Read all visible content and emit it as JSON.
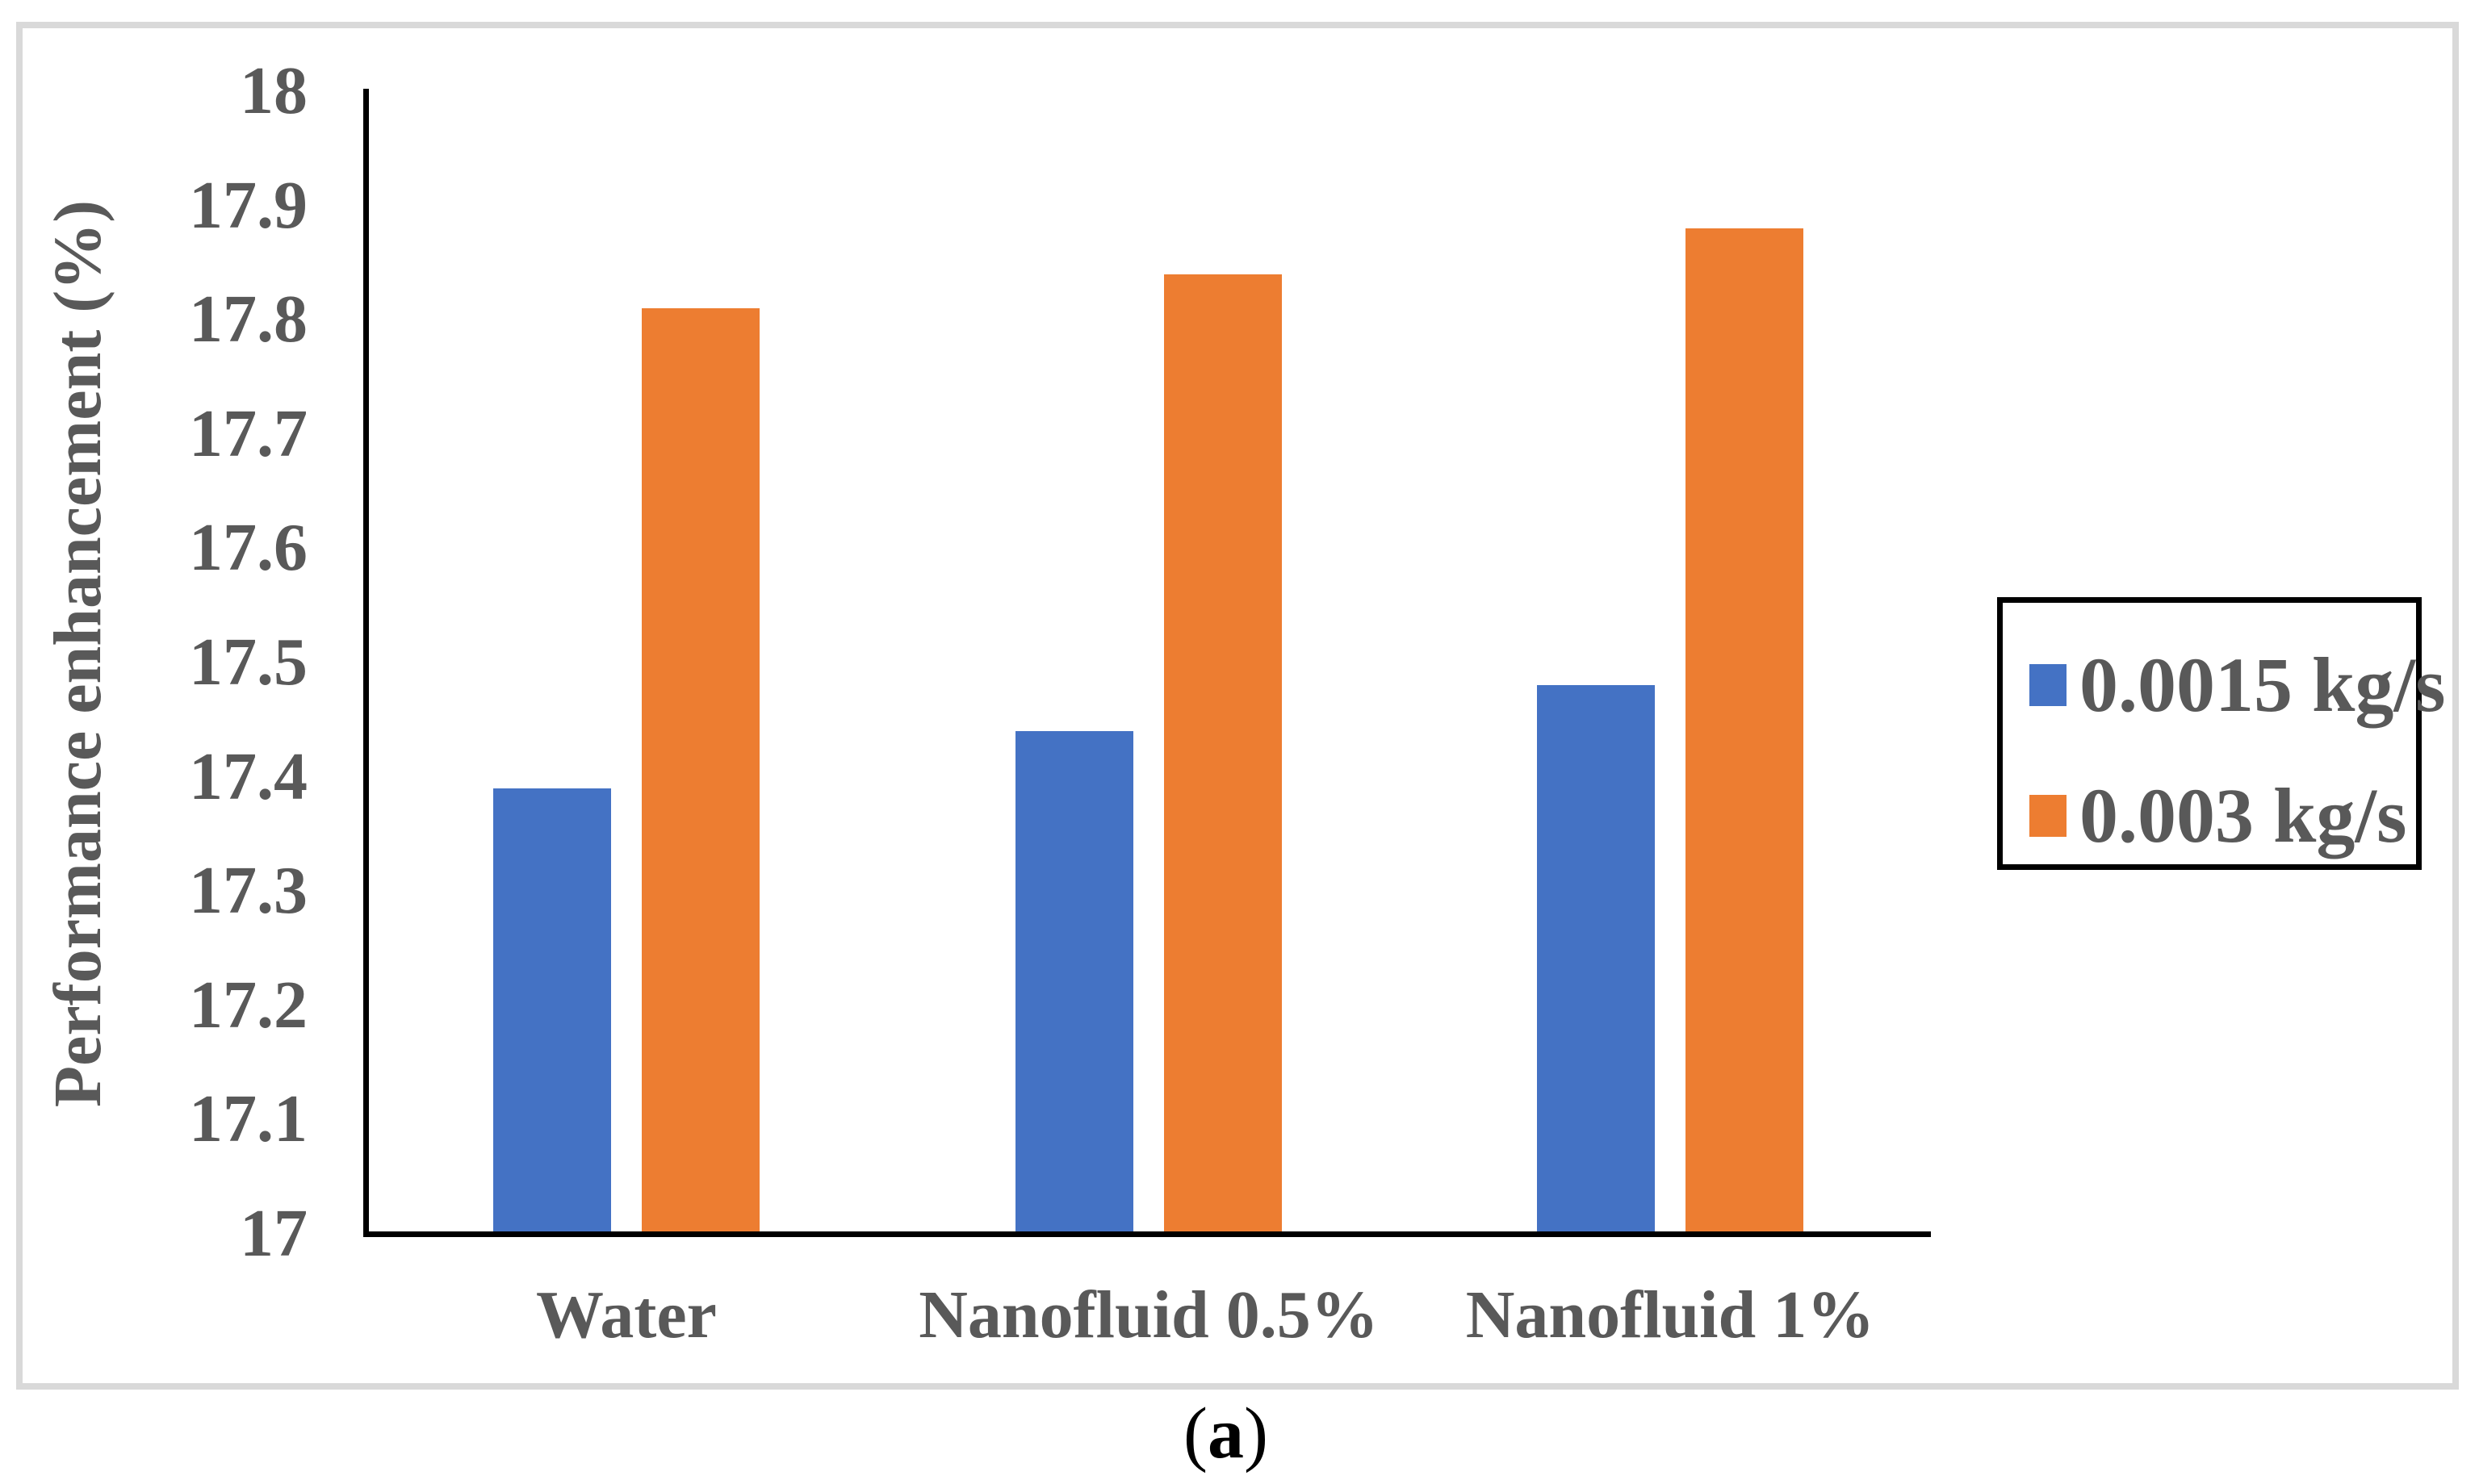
{
  "figure": {
    "caption": {
      "open": "(",
      "letter": "a",
      "close": ")"
    }
  },
  "colors": {
    "series_blue": "#4472C4",
    "series_orange": "#ED7D31",
    "axis_text": "#595959",
    "axis_line": "#000000",
    "frame_border": "#D9D9D9",
    "caption_text": "#000000"
  },
  "chart_data": {
    "type": "bar",
    "title": "",
    "xlabel": "",
    "ylabel": "Performance enhancement (%)",
    "ylim": [
      17,
      18
    ],
    "ytick_step": 0.1,
    "ytick_labels": [
      "18",
      "17.9",
      "17.8",
      "17.7",
      "17.6",
      "17.5",
      "17.4",
      "17.3",
      "17.2",
      "17.1",
      "17"
    ],
    "categories": [
      "Water",
      "Nanofluid 0.5%",
      "Nanofluid 1%"
    ],
    "series": [
      {
        "name": "0.0015 kg/s",
        "color": "#4472C4",
        "values": [
          17.39,
          17.44,
          17.48
        ]
      },
      {
        "name": "0.003 kg/s",
        "color": "#ED7D31",
        "values": [
          17.81,
          17.84,
          17.88
        ]
      }
    ],
    "legend_position": "right",
    "legend_border": true,
    "grid": false
  }
}
